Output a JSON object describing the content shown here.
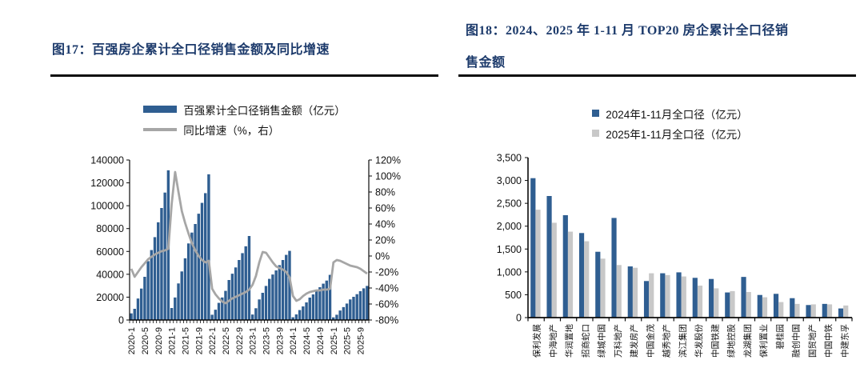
{
  "colors": {
    "bar_blue": "#2F5E91",
    "line_gray": "#A6A6A6",
    "bar_gray_2025": "#C8C8C8",
    "title_navy": "#1C3A6B",
    "axis_black": "#0a0a0a"
  },
  "figure17": {
    "title": "图17：百强房企累计全口径销售金额及同比增速",
    "legend": [
      {
        "label": "百强累计全口径销售金额（亿元）",
        "type": "bar",
        "color": "#2F5E91"
      },
      {
        "label": "同比增速（%，右）",
        "type": "line",
        "color": "#A6A6A6"
      }
    ],
    "chart_data": {
      "type": "combo-bar-line",
      "x": [
        "2020-1",
        "2020-2",
        "2020-3",
        "2020-4",
        "2020-5",
        "2020-6",
        "2020-7",
        "2020-8",
        "2020-9",
        "2020-10",
        "2020-11",
        "2020-12",
        "2021-1",
        "2021-2",
        "2021-3",
        "2021-4",
        "2021-5",
        "2021-6",
        "2021-7",
        "2021-8",
        "2021-9",
        "2021-10",
        "2021-11",
        "2021-12",
        "2022-1",
        "2022-2",
        "2022-3",
        "2022-4",
        "2022-5",
        "2022-6",
        "2022-7",
        "2022-8",
        "2022-9",
        "2022-10",
        "2022-11",
        "2022-12",
        "2023-1",
        "2023-2",
        "2023-3",
        "2023-4",
        "2023-5",
        "2023-6",
        "2023-7",
        "2023-8",
        "2023-9",
        "2023-10",
        "2023-11",
        "2023-12",
        "2024-1",
        "2024-2",
        "2024-3",
        "2024-4",
        "2024-5",
        "2024-6",
        "2024-7",
        "2024-8",
        "2024-9",
        "2024-10",
        "2024-11",
        "2024-12",
        "2025-1",
        "2025-2",
        "2025-3",
        "2025-4",
        "2025-5",
        "2025-6",
        "2025-7",
        "2025-8",
        "2025-9",
        "2025-10",
        "2025-11"
      ],
      "x_tick_every": 4,
      "series": [
        {
          "name": "百强累计全口径销售金额（亿元）",
          "type": "bar",
          "axis": "left",
          "color": "#2F5E91",
          "values": [
            5800,
            9800,
            18800,
            27500,
            37800,
            51500,
            61200,
            72500,
            85500,
            98000,
            111500,
            131000,
            10500,
            19700,
            32000,
            42500,
            54000,
            67000,
            76500,
            84000,
            93000,
            102500,
            111000,
            127500,
            4600,
            9000,
            15000,
            19700,
            25500,
            35000,
            40500,
            46000,
            52500,
            58500,
            64500,
            73500,
            4800,
            10300,
            18000,
            23800,
            29800,
            36000,
            39800,
            43400,
            48000,
            52500,
            57000,
            60500,
            2400,
            4900,
            8700,
            11900,
            15400,
            19600,
            22400,
            25500,
            28700,
            31800,
            34500,
            39500,
            2300,
            4600,
            8300,
            11300,
            14400,
            18000,
            20300,
            22600,
            25200,
            27700,
            29800
          ]
        },
        {
          "name": "同比增速（%，右）",
          "type": "line",
          "axis": "right",
          "color": "#A6A6A6",
          "values": [
            -16,
            -26,
            -20,
            -14,
            -9,
            -4,
            -1,
            2,
            4,
            6,
            7,
            9,
            65,
            105,
            80,
            56,
            41,
            28,
            16,
            7,
            0,
            -5,
            -8,
            -6,
            -41,
            -48,
            -53,
            -57,
            -59,
            -56,
            -53,
            -51,
            -49,
            -47,
            -45,
            -42,
            -36,
            -25,
            -8,
            5,
            4,
            -2,
            -8,
            -13,
            -15,
            -17,
            -20,
            -27,
            -50,
            -56,
            -54,
            -50,
            -47,
            -45,
            -44,
            -43,
            -43,
            -42,
            -42,
            -41,
            -8,
            -5,
            -6,
            -8,
            -10,
            -12,
            -13,
            -14,
            -16,
            -19,
            -22
          ]
        }
      ],
      "left_axis": {
        "min": 0,
        "max": 140000,
        "step": 20000,
        "tick_labels": [
          "0",
          "20000",
          "40000",
          "60000",
          "80000",
          "100000",
          "120000",
          "140000"
        ]
      },
      "right_axis": {
        "min": -80,
        "max": 120,
        "step": 20,
        "tick_labels": [
          "-80%",
          "-60%",
          "-40%",
          "-20%",
          "0%",
          "20%",
          "40%",
          "60%",
          "80%",
          "100%",
          "120%"
        ]
      }
    }
  },
  "figure18": {
    "title_line1": "图18：2024、2025 年 1-11 月 TOP20 房企累计全口径销",
    "title_line2": "售金额",
    "legend": [
      {
        "label": "2024年1-11月全口径（亿元）",
        "color": "#2F5E91"
      },
      {
        "label": "2025年1-11月全口径（亿元）",
        "color": "#C8C8C8"
      }
    ],
    "chart_data": {
      "type": "bar",
      "categories": [
        "保利发展",
        "中海地产",
        "华润置地",
        "招商蛇口",
        "绿城中国",
        "万科地产",
        "建发房产",
        "中国金茂",
        "越秀地产",
        "滨江集团",
        "华发股份",
        "中国铁建",
        "绿地控股",
        "龙湖集团",
        "保利置业",
        "碧桂园",
        "融创中国",
        "国贸地产",
        "中国中铁",
        "中建东孚"
      ],
      "series": [
        {
          "name": "2024年1-11月全口径（亿元）",
          "color": "#2F5E91",
          "values": [
            3050,
            2660,
            2240,
            1850,
            1440,
            2180,
            1120,
            800,
            970,
            990,
            870,
            845,
            550,
            890,
            495,
            520,
            425,
            275,
            300,
            200
          ]
        },
        {
          "name": "2025年1-11月全口径（亿元）",
          "color": "#C8C8C8",
          "values": [
            2360,
            2075,
            1880,
            1670,
            1290,
            1150,
            1090,
            970,
            930,
            900,
            700,
            640,
            580,
            560,
            445,
            340,
            300,
            290,
            290,
            265
          ]
        }
      ],
      "y_axis": {
        "min": 0,
        "max": 3500,
        "step": 500,
        "tick_labels": [
          "0",
          "500",
          "1,000",
          "1,500",
          "2,000",
          "2,500",
          "3,000",
          "3,500"
        ]
      },
      "legend_position": "top",
      "grid": false
    }
  }
}
